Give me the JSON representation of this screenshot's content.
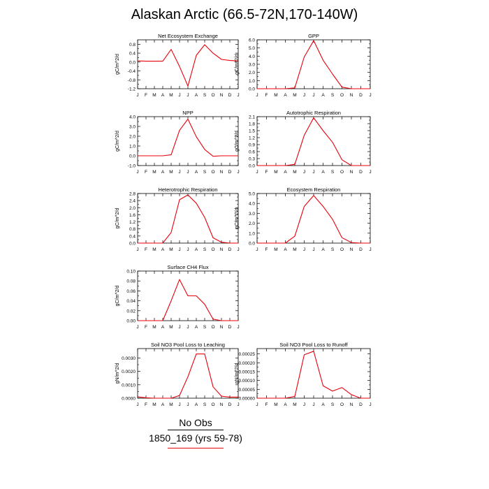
{
  "title": "Alaskan Arctic (66.5-72N,170-140W)",
  "colors": {
    "series": "#e8000b",
    "obs": "#000000",
    "axis": "#000000"
  },
  "legend": [
    {
      "label": "No Obs",
      "color": "#000000"
    },
    {
      "label": "1850_169 (yrs 59-78)",
      "color": "#e8000b"
    }
  ],
  "chart_data": [
    {
      "type": "line",
      "title": "Net Ecosystem Exchange",
      "ylabel": "gC/m^2/d",
      "categories": [
        "J",
        "F",
        "M",
        "A",
        "M",
        "J",
        "J",
        "A",
        "S",
        "O",
        "N",
        "D",
        "J"
      ],
      "ylim": [
        -1.2,
        1.0
      ],
      "yticks": [
        "0.8",
        "0.4",
        "0.0",
        "-0.4",
        "-0.8",
        "-1.2"
      ],
      "series": [
        {
          "values": [
            0.05,
            0.04,
            0.04,
            0.04,
            0.57,
            -0.2,
            -1.08,
            0.3,
            0.78,
            0.4,
            0.12,
            0.07,
            0.05
          ]
        }
      ]
    },
    {
      "type": "line",
      "title": "GPP",
      "ylabel": "gC/m^2/d",
      "categories": [
        "J",
        "F",
        "M",
        "A",
        "M",
        "J",
        "J",
        "A",
        "S",
        "O",
        "N",
        "D",
        "J"
      ],
      "ylim": [
        0.0,
        6.0
      ],
      "yticks": [
        "6.0",
        "5.0",
        "4.0",
        "3.0",
        "2.0",
        "1.0",
        "0.0"
      ],
      "series": [
        {
          "values": [
            0.0,
            0.0,
            0.0,
            0.0,
            0.1,
            3.9,
            5.9,
            3.5,
            1.8,
            0.2,
            0.0,
            0.0,
            0.0
          ]
        }
      ]
    },
    {
      "type": "line",
      "title": "NPP",
      "ylabel": "gC/m^2/d",
      "categories": [
        "J",
        "F",
        "M",
        "A",
        "M",
        "J",
        "J",
        "A",
        "S",
        "O",
        "N",
        "D",
        "J"
      ],
      "ylim": [
        -1.0,
        4.0
      ],
      "yticks": [
        "4.0",
        "3.0",
        "2.0",
        "1.0",
        "0.0",
        "-1.0"
      ],
      "series": [
        {
          "values": [
            0.0,
            0.0,
            0.0,
            0.0,
            0.1,
            2.6,
            3.75,
            1.95,
            0.65,
            -0.05,
            0.0,
            0.0,
            0.0
          ]
        }
      ]
    },
    {
      "type": "line",
      "title": "Autotrophic Respiration",
      "ylabel": "gC/m^2/d",
      "categories": [
        "J",
        "F",
        "M",
        "A",
        "M",
        "J",
        "J",
        "A",
        "S",
        "O",
        "N",
        "D",
        "J"
      ],
      "ylim": [
        0.0,
        2.1
      ],
      "yticks": [
        "2.1",
        "1.8",
        "1.5",
        "1.2",
        "0.9",
        "0.6",
        "0.3",
        "0.0"
      ],
      "series": [
        {
          "values": [
            0.0,
            0.0,
            0.0,
            0.0,
            0.05,
            1.3,
            2.05,
            1.5,
            1.0,
            0.25,
            0.0,
            0.0,
            0.0
          ]
        }
      ]
    },
    {
      "type": "line",
      "title": "Heterotrophic Respiration",
      "ylabel": "gC/m^2/d",
      "categories": [
        "J",
        "F",
        "M",
        "A",
        "M",
        "J",
        "J",
        "A",
        "S",
        "O",
        "N",
        "D",
        "J"
      ],
      "ylim": [
        0.0,
        2.8
      ],
      "yticks": [
        "2.8",
        "2.4",
        "2.0",
        "1.6",
        "1.2",
        "0.8",
        "0.4",
        "0.0"
      ],
      "series": [
        {
          "values": [
            0.0,
            0.0,
            0.0,
            0.0,
            0.6,
            2.45,
            2.72,
            2.25,
            1.45,
            0.3,
            0.05,
            0.0,
            0.0
          ]
        }
      ]
    },
    {
      "type": "line",
      "title": "Ecosystem Respiration",
      "ylabel": "gC/m^2/d",
      "categories": [
        "J",
        "F",
        "M",
        "A",
        "M",
        "J",
        "J",
        "A",
        "S",
        "O",
        "N",
        "D",
        "J"
      ],
      "ylim": [
        0.0,
        5.0
      ],
      "yticks": [
        "5.0",
        "4.0",
        "3.0",
        "2.0",
        "1.0",
        "0.0"
      ],
      "series": [
        {
          "values": [
            0.0,
            0.0,
            0.0,
            0.0,
            0.7,
            3.7,
            4.8,
            3.7,
            2.4,
            0.55,
            0.05,
            0.0,
            0.0
          ]
        }
      ]
    },
    {
      "type": "line",
      "title": "Surface CH4 Flux",
      "ylabel": "gC/m^2/d",
      "categories": [
        "J",
        "F",
        "M",
        "A",
        "M",
        "J",
        "J",
        "A",
        "S",
        "O",
        "N",
        "D",
        "J"
      ],
      "ylim": [
        0.0,
        0.1
      ],
      "yticks": [
        "0.10",
        "0.08",
        "0.06",
        "0.04",
        "0.02",
        "0.00"
      ],
      "series": [
        {
          "values": [
            0.0,
            0.0,
            0.0,
            0.0,
            0.04,
            0.083,
            0.05,
            0.05,
            0.033,
            0.003,
            0.0,
            0.0,
            0.0
          ]
        }
      ]
    },
    {
      "type": "line",
      "title": "Soil NO3 Pool Loss to Leaching",
      "ylabel": "gN/m^2/d",
      "categories": [
        "J",
        "F",
        "M",
        "A",
        "M",
        "J",
        "J",
        "A",
        "S",
        "O",
        "N",
        "D",
        "J"
      ],
      "ylim": [
        0.0,
        0.0037
      ],
      "yticks": [
        "0.0030",
        "0.0020",
        "0.0010",
        "0.0000"
      ],
      "series": [
        {
          "values": [
            0.0001,
            3e-05,
            0.0,
            0.0,
            0.0,
            0.0002,
            0.0016,
            0.0033,
            0.0033,
            0.00085,
            0.00015,
            8e-05,
            8e-05
          ]
        }
      ]
    },
    {
      "type": "line",
      "title": "Soil NO3 Pool Loss to Runoff",
      "ylabel": "gN/m^2/d",
      "categories": [
        "J",
        "F",
        "M",
        "A",
        "M",
        "J",
        "J",
        "A",
        "S",
        "O",
        "N",
        "D",
        "J"
      ],
      "ylim": [
        0.0,
        0.00028
      ],
      "yticks": [
        "0.00025",
        "0.00020",
        "0.00015",
        "0.00010",
        "0.00005",
        "0.00000"
      ],
      "series": [
        {
          "values": [
            0.0,
            0.0,
            0.0,
            0.0,
            1e-05,
            0.000245,
            0.000265,
            7e-05,
            4e-05,
            6e-05,
            2e-05,
            0.0,
            0.0
          ]
        }
      ]
    }
  ]
}
